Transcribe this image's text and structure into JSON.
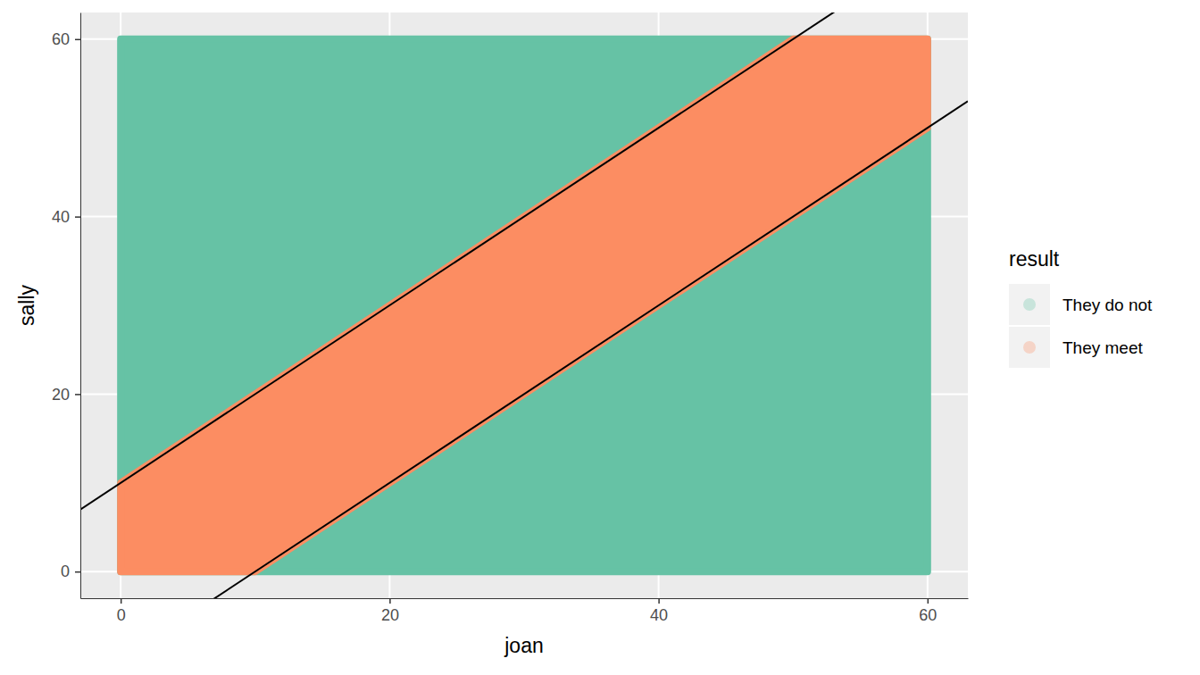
{
  "chart_data": {
    "type": "polygon",
    "x_label": "joan",
    "y_label": "sally",
    "legend_title": "result",
    "legend": "right",
    "grid": true,
    "xlim": [
      -3,
      63
    ],
    "ylim": [
      -3,
      63
    ],
    "xticks": [
      0,
      20,
      40,
      60
    ],
    "yticks": [
      0,
      20,
      40,
      60
    ],
    "series": [
      {
        "name": "They do not",
        "color": "#66C2A5",
        "marker": "circle",
        "x": [
          0,
          60,
          60,
          0
        ],
        "values": [
          0,
          0,
          60,
          60
        ]
      },
      {
        "name": "They meet",
        "color": "#FC8D62",
        "marker": "circle",
        "x": [
          0,
          10,
          60,
          60,
          50,
          0
        ],
        "values": [
          0,
          0,
          50,
          60,
          60,
          10
        ]
      }
    ],
    "lines": [
      {
        "slope": 1,
        "intercept": 10,
        "color": "#000000"
      },
      {
        "slope": 1,
        "intercept": -10,
        "color": "#000000"
      }
    ]
  }
}
